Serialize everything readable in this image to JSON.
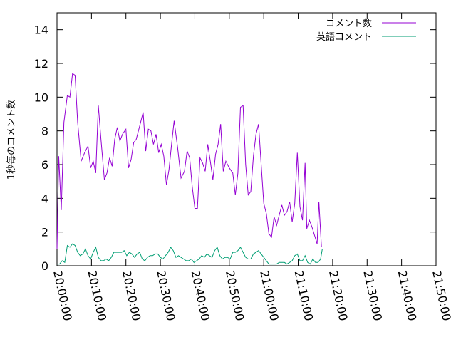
{
  "chart_data": {
    "type": "line",
    "ylabel": "1秒毎のコメント数",
    "xlabel": "",
    "title": "",
    "ylim": [
      0,
      15
    ],
    "yticks": [
      0,
      2,
      4,
      6,
      8,
      10,
      12,
      14
    ],
    "xlim": [
      "20:00:00",
      "21:50:00"
    ],
    "xticks": [
      "20:00:00",
      "20:10:00",
      "20:20:00",
      "20:30:00",
      "20:40:00",
      "20:50:00",
      "21:00:00",
      "21:10:00",
      "21:20:00",
      "21:30:00",
      "21:40:00",
      "21:50:00"
    ],
    "legend_position": "top-right",
    "grid": false,
    "series": [
      {
        "name": "コメント数",
        "color": "#9400d3",
        "points": [
          [
            "20:00:00",
            1.0
          ],
          [
            "20:00:30",
            6.5
          ],
          [
            "20:01:15",
            3.3
          ],
          [
            "20:02:00",
            8.5
          ],
          [
            "20:03:00",
            10.1
          ],
          [
            "20:03:45",
            10.0
          ],
          [
            "20:04:30",
            11.4
          ],
          [
            "20:05:15",
            11.3
          ],
          [
            "20:06:00",
            8.5
          ],
          [
            "20:07:00",
            6.2
          ],
          [
            "20:08:00",
            6.7
          ],
          [
            "20:09:00",
            7.1
          ],
          [
            "20:09:45",
            5.8
          ],
          [
            "20:10:30",
            6.2
          ],
          [
            "20:11:15",
            5.5
          ],
          [
            "20:12:00",
            9.5
          ],
          [
            "20:12:45",
            7.5
          ],
          [
            "20:13:45",
            5.1
          ],
          [
            "20:14:30",
            5.5
          ],
          [
            "20:15:15",
            6.4
          ],
          [
            "20:16:00",
            5.9
          ],
          [
            "20:16:45",
            7.5
          ],
          [
            "20:17:30",
            8.2
          ],
          [
            "20:18:15",
            7.4
          ],
          [
            "20:19:00",
            7.8
          ],
          [
            "20:20:00",
            8.1
          ],
          [
            "20:20:45",
            5.8
          ],
          [
            "20:21:30",
            6.3
          ],
          [
            "20:22:15",
            7.3
          ],
          [
            "20:23:00",
            7.5
          ],
          [
            "20:24:00",
            8.3
          ],
          [
            "20:25:00",
            9.1
          ],
          [
            "20:25:45",
            6.8
          ],
          [
            "20:26:30",
            8.1
          ],
          [
            "20:27:15",
            8.0
          ],
          [
            "20:28:00",
            7.2
          ],
          [
            "20:28:45",
            7.8
          ],
          [
            "20:29:30",
            6.7
          ],
          [
            "20:30:15",
            7.2
          ],
          [
            "20:31:00",
            6.5
          ],
          [
            "20:31:45",
            4.8
          ],
          [
            "20:32:30",
            5.7
          ],
          [
            "20:33:15",
            7.2
          ],
          [
            "20:34:00",
            8.6
          ],
          [
            "20:35:00",
            7.0
          ],
          [
            "20:36:00",
            5.2
          ],
          [
            "20:37:00",
            5.6
          ],
          [
            "20:37:45",
            6.8
          ],
          [
            "20:38:30",
            6.4
          ],
          [
            "20:39:15",
            4.7
          ],
          [
            "20:40:00",
            3.4
          ],
          [
            "20:40:45",
            3.4
          ],
          [
            "20:41:30",
            6.4
          ],
          [
            "20:42:15",
            6.1
          ],
          [
            "20:43:00",
            5.6
          ],
          [
            "20:43:45",
            7.2
          ],
          [
            "20:44:30",
            6.2
          ],
          [
            "20:45:15",
            5.1
          ],
          [
            "20:46:00",
            6.6
          ],
          [
            "20:46:45",
            7.2
          ],
          [
            "20:47:30",
            8.4
          ],
          [
            "20:48:15",
            5.6
          ],
          [
            "20:49:00",
            6.2
          ],
          [
            "20:50:00",
            5.8
          ],
          [
            "20:51:00",
            5.5
          ],
          [
            "20:51:45",
            4.2
          ],
          [
            "20:52:30",
            5.5
          ],
          [
            "20:53:15",
            9.4
          ],
          [
            "20:54:00",
            9.5
          ],
          [
            "20:54:45",
            6.0
          ],
          [
            "20:55:30",
            4.2
          ],
          [
            "20:56:15",
            4.4
          ],
          [
            "20:57:00",
            6.5
          ],
          [
            "20:57:45",
            7.8
          ],
          [
            "20:58:30",
            8.4
          ],
          [
            "20:59:15",
            6.0
          ],
          [
            "21:00:00",
            3.7
          ],
          [
            "21:00:45",
            3.1
          ],
          [
            "21:01:30",
            1.9
          ],
          [
            "21:02:15",
            1.7
          ],
          [
            "21:03:00",
            2.9
          ],
          [
            "21:03:45",
            2.4
          ],
          [
            "21:04:30",
            3.0
          ],
          [
            "21:05:15",
            3.6
          ],
          [
            "21:06:00",
            3.0
          ],
          [
            "21:06:45",
            3.2
          ],
          [
            "21:07:30",
            3.8
          ],
          [
            "21:08:15",
            2.6
          ],
          [
            "21:09:00",
            3.7
          ],
          [
            "21:09:45",
            6.7
          ],
          [
            "21:10:30",
            3.5
          ],
          [
            "21:11:15",
            2.7
          ],
          [
            "21:12:00",
            6.1
          ],
          [
            "21:12:30",
            2.2
          ],
          [
            "21:13:15",
            2.7
          ],
          [
            "21:14:00",
            2.3
          ],
          [
            "21:14:45",
            1.8
          ],
          [
            "21:15:30",
            1.3
          ],
          [
            "21:16:00",
            3.8
          ],
          [
            "21:16:45",
            1.1
          ]
        ]
      },
      {
        "name": "英語コメント",
        "color": "#009e73",
        "points": [
          [
            "20:00:00",
            0.1
          ],
          [
            "20:00:45",
            0.1
          ],
          [
            "20:01:30",
            0.3
          ],
          [
            "20:02:15",
            0.2
          ],
          [
            "20:03:00",
            1.2
          ],
          [
            "20:03:45",
            1.1
          ],
          [
            "20:04:30",
            1.3
          ],
          [
            "20:05:15",
            1.2
          ],
          [
            "20:06:00",
            0.8
          ],
          [
            "20:06:45",
            0.6
          ],
          [
            "20:07:30",
            0.7
          ],
          [
            "20:08:15",
            1.0
          ],
          [
            "20:09:00",
            0.6
          ],
          [
            "20:09:45",
            0.4
          ],
          [
            "20:10:30",
            0.8
          ],
          [
            "20:11:15",
            1.1
          ],
          [
            "20:12:00",
            0.5
          ],
          [
            "20:12:45",
            0.3
          ],
          [
            "20:13:30",
            0.3
          ],
          [
            "20:14:15",
            0.4
          ],
          [
            "20:15:00",
            0.3
          ],
          [
            "20:15:45",
            0.5
          ],
          [
            "20:16:30",
            0.8
          ],
          [
            "20:17:15",
            0.8
          ],
          [
            "20:18:00",
            0.8
          ],
          [
            "20:18:45",
            0.8
          ],
          [
            "20:19:30",
            0.9
          ],
          [
            "20:20:15",
            0.6
          ],
          [
            "20:21:00",
            0.8
          ],
          [
            "20:21:45",
            0.7
          ],
          [
            "20:22:30",
            0.5
          ],
          [
            "20:23:15",
            0.7
          ],
          [
            "20:24:00",
            0.8
          ],
          [
            "20:24:45",
            0.4
          ],
          [
            "20:25:30",
            0.3
          ],
          [
            "20:26:15",
            0.5
          ],
          [
            "20:27:00",
            0.6
          ],
          [
            "20:27:45",
            0.6
          ],
          [
            "20:28:30",
            0.7
          ],
          [
            "20:29:15",
            0.7
          ],
          [
            "20:30:00",
            0.5
          ],
          [
            "20:30:45",
            0.4
          ],
          [
            "20:31:30",
            0.6
          ],
          [
            "20:32:15",
            0.8
          ],
          [
            "20:33:00",
            1.1
          ],
          [
            "20:33:45",
            0.9
          ],
          [
            "20:34:30",
            0.5
          ],
          [
            "20:35:15",
            0.6
          ],
          [
            "20:36:00",
            0.5
          ],
          [
            "20:36:45",
            0.4
          ],
          [
            "20:37:30",
            0.3
          ],
          [
            "20:38:15",
            0.3
          ],
          [
            "20:39:00",
            0.4
          ],
          [
            "20:39:45",
            0.2
          ],
          [
            "20:40:30",
            0.3
          ],
          [
            "20:41:15",
            0.4
          ],
          [
            "20:42:00",
            0.6
          ],
          [
            "20:42:45",
            0.5
          ],
          [
            "20:43:30",
            0.7
          ],
          [
            "20:44:15",
            0.6
          ],
          [
            "20:45:00",
            0.5
          ],
          [
            "20:45:45",
            0.9
          ],
          [
            "20:46:30",
            1.1
          ],
          [
            "20:47:15",
            0.6
          ],
          [
            "20:48:00",
            0.4
          ],
          [
            "20:48:45",
            0.5
          ],
          [
            "20:49:30",
            0.5
          ],
          [
            "20:50:15",
            0.4
          ],
          [
            "20:51:00",
            0.8
          ],
          [
            "20:51:45",
            0.8
          ],
          [
            "20:52:30",
            0.9
          ],
          [
            "20:53:15",
            1.1
          ],
          [
            "20:54:00",
            0.8
          ],
          [
            "20:54:45",
            0.5
          ],
          [
            "20:55:30",
            0.4
          ],
          [
            "20:56:15",
            0.4
          ],
          [
            "20:57:00",
            0.7
          ],
          [
            "20:57:45",
            0.8
          ],
          [
            "20:58:30",
            0.9
          ],
          [
            "20:59:15",
            0.7
          ],
          [
            "21:00:00",
            0.5
          ],
          [
            "21:00:45",
            0.3
          ],
          [
            "21:01:30",
            0.1
          ],
          [
            "21:02:15",
            0.1
          ],
          [
            "21:03:00",
            0.1
          ],
          [
            "21:03:45",
            0.1
          ],
          [
            "21:04:30",
            0.2
          ],
          [
            "21:05:15",
            0.2
          ],
          [
            "21:06:00",
            0.2
          ],
          [
            "21:06:45",
            0.1
          ],
          [
            "21:07:30",
            0.2
          ],
          [
            "21:08:15",
            0.3
          ],
          [
            "21:09:00",
            0.6
          ],
          [
            "21:09:45",
            0.7
          ],
          [
            "21:10:30",
            0.3
          ],
          [
            "21:11:15",
            0.3
          ],
          [
            "21:12:00",
            0.6
          ],
          [
            "21:12:45",
            0.2
          ],
          [
            "21:13:30",
            0.1
          ],
          [
            "21:14:15",
            0.4
          ],
          [
            "21:15:00",
            0.2
          ],
          [
            "21:15:45",
            0.2
          ],
          [
            "21:16:30",
            0.4
          ],
          [
            "21:17:00",
            1.0
          ]
        ]
      }
    ]
  }
}
